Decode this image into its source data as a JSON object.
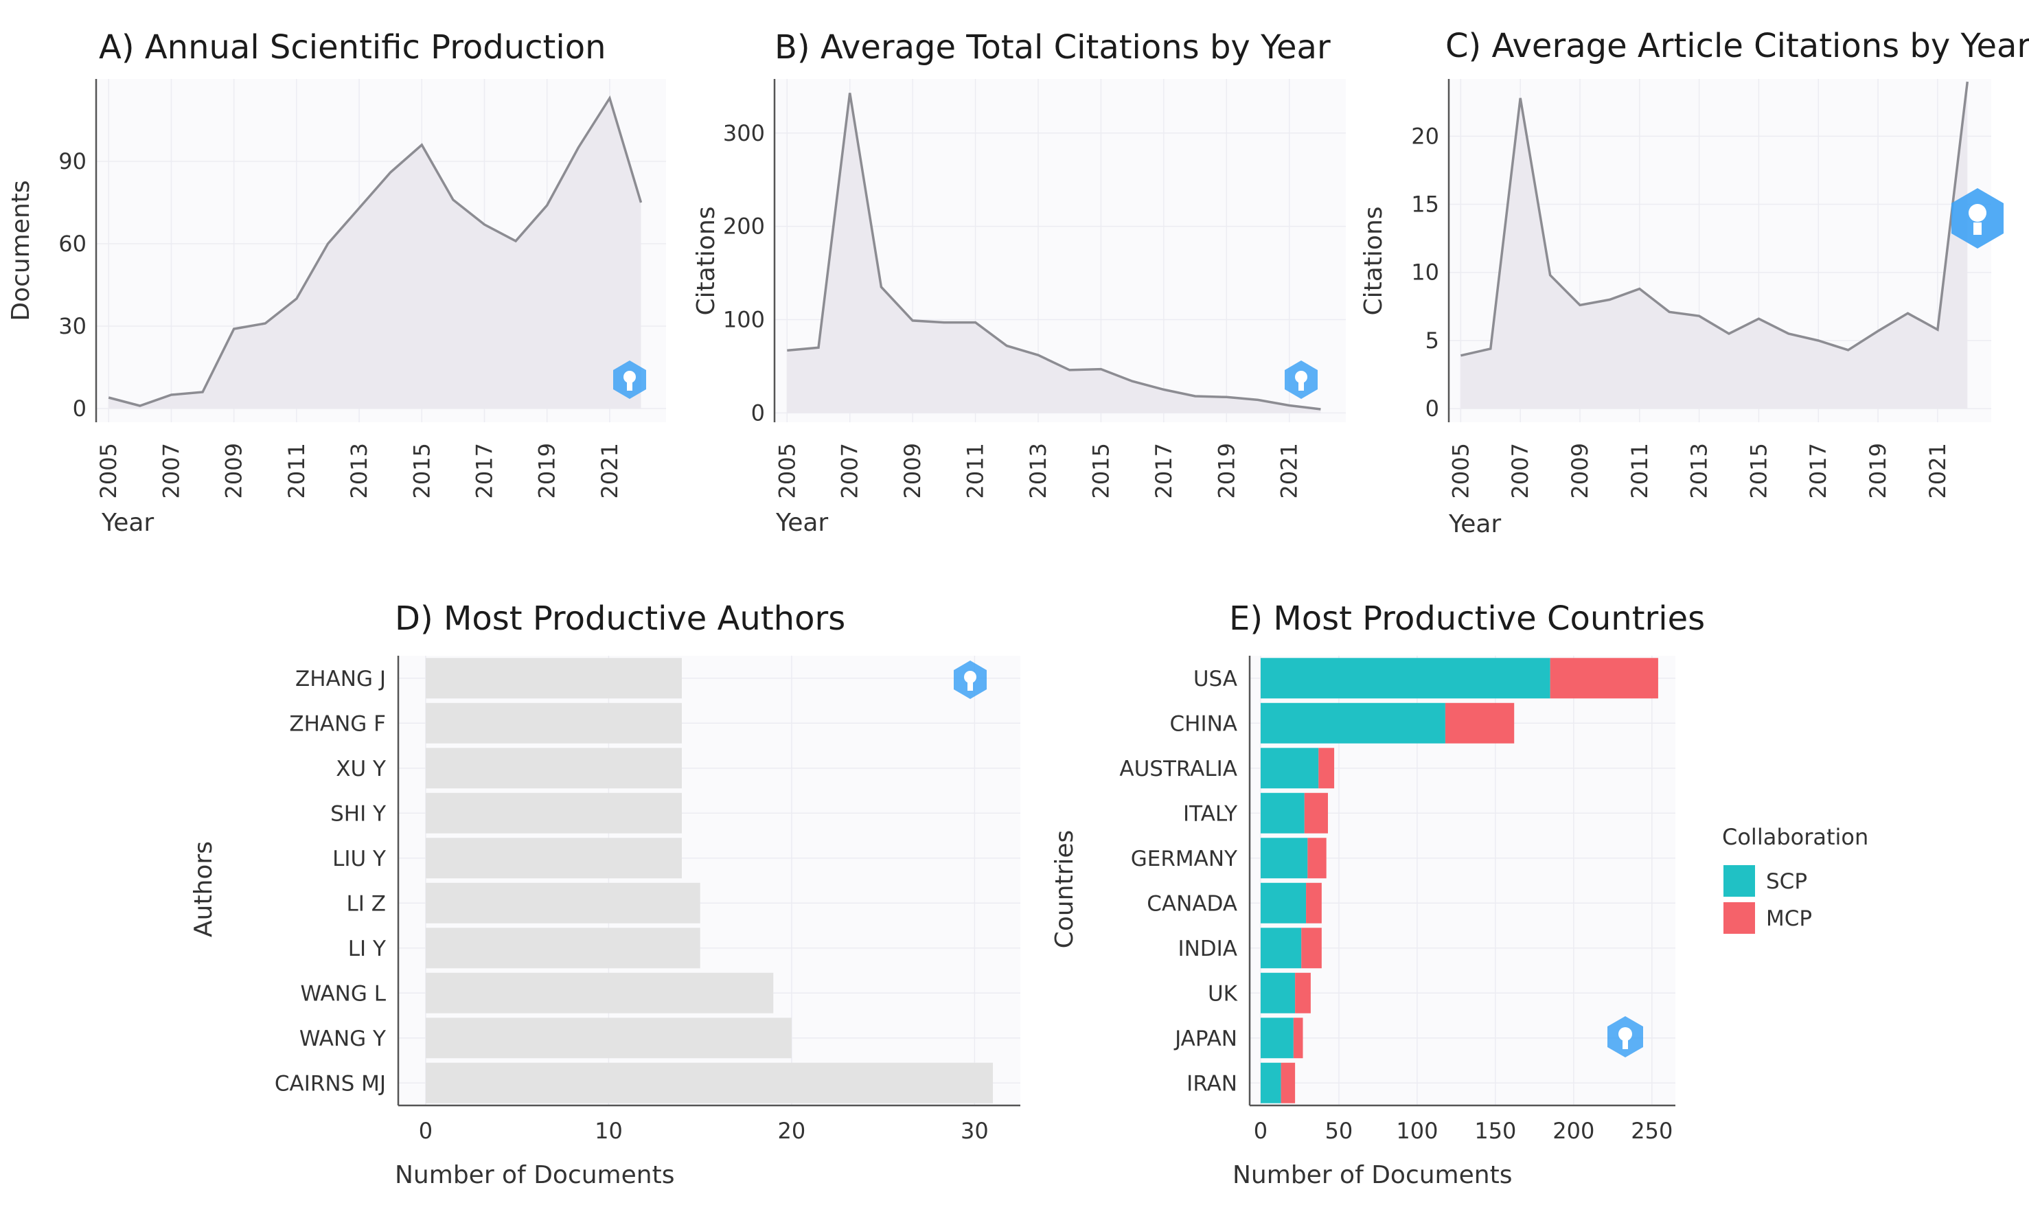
{
  "colors": {
    "scp": "#20c1c5",
    "mcp": "#f5626a",
    "bar": "#e3e3e3",
    "line": "#8c8c92",
    "area": "#ebe9ef"
  },
  "chart_data": [
    {
      "id": "a",
      "type": "area",
      "title": "A) Annual Scientific Production",
      "xlabel": "Year",
      "ylabel": "Documents",
      "x": [
        2005,
        2006,
        2007,
        2008,
        2009,
        2010,
        2011,
        2012,
        2013,
        2014,
        2015,
        2016,
        2017,
        2018,
        2019,
        2020,
        2021,
        2022
      ],
      "values": [
        4,
        1,
        5,
        6,
        29,
        31,
        40,
        60,
        73,
        86,
        96,
        76,
        67,
        61,
        74,
        95,
        113,
        75
      ],
      "xticks": [
        "2005",
        "2007",
        "2009",
        "2011",
        "2013",
        "2015",
        "2017",
        "2019",
        "2021"
      ],
      "yticks": [
        "0",
        "30",
        "60",
        "90"
      ],
      "xlim": [
        2004.6,
        2022.8
      ],
      "ylim": [
        -5,
        120
      ]
    },
    {
      "id": "b",
      "type": "area",
      "title": "B) Average Total Citations by Year",
      "xlabel": "Year",
      "ylabel": "Citations",
      "x": [
        2005,
        2006,
        2007,
        2008,
        2009,
        2010,
        2011,
        2012,
        2013,
        2014,
        2015,
        2016,
        2017,
        2018,
        2019,
        2020,
        2021,
        2022
      ],
      "values": [
        67,
        70,
        343,
        135,
        99,
        97,
        97,
        72,
        62,
        46,
        47,
        34,
        25,
        18,
        17,
        14,
        8,
        4
      ],
      "xticks": [
        "2005",
        "2007",
        "2009",
        "2011",
        "2013",
        "2015",
        "2017",
        "2019",
        "2021"
      ],
      "yticks": [
        "0",
        "100",
        "200",
        "300"
      ],
      "xlim": [
        2004.6,
        2022.8
      ],
      "ylim": [
        -10,
        358
      ]
    },
    {
      "id": "c",
      "type": "area",
      "title": "C) Average Article Citations by Year",
      "xlabel": "Year",
      "ylabel": "Citations",
      "x": [
        2005,
        2006,
        2007,
        2008,
        2009,
        2010,
        2011,
        2012,
        2013,
        2014,
        2015,
        2016,
        2017,
        2018,
        2019,
        2020,
        2021,
        2022
      ],
      "values": [
        3.9,
        4.4,
        22.8,
        9.8,
        7.6,
        8.0,
        8.8,
        7.1,
        6.8,
        5.5,
        6.6,
        5.5,
        5.0,
        4.3,
        5.7,
        7.0,
        5.8,
        24.0
      ],
      "xticks": [
        "2005",
        "2007",
        "2009",
        "2011",
        "2013",
        "2015",
        "2017",
        "2019",
        "2021"
      ],
      "yticks": [
        "0",
        "5",
        "10",
        "15",
        "20"
      ],
      "xlim": [
        2004.6,
        2022.8
      ],
      "ylim": [
        -1,
        24.2
      ]
    },
    {
      "id": "d",
      "type": "bar",
      "orientation": "horizontal",
      "title": "D) Most Productive Authors",
      "xlabel": "Number of Documents",
      "ylabel": "Authors",
      "categories": [
        "ZHANG J",
        "ZHANG F",
        "XU Y",
        "SHI Y",
        "LIU Y",
        "LI Z",
        "LI Y",
        "WANG L",
        "WANG Y",
        "CAIRNS MJ"
      ],
      "values": [
        14,
        14,
        14,
        14,
        14,
        15,
        15,
        19,
        20,
        31
      ],
      "xticks": [
        "0",
        "10",
        "20",
        "30"
      ],
      "xlim": [
        -1.5,
        32.5
      ]
    },
    {
      "id": "e",
      "type": "bar",
      "orientation": "horizontal",
      "stacked": true,
      "title": "E) Most Productive Countries",
      "xlabel": "Number of Documents",
      "ylabel": "Countries",
      "categories": [
        "USA",
        "CHINA",
        "AUSTRALIA",
        "ITALY",
        "GERMANY",
        "CANADA",
        "INDIA",
        "UK",
        "JAPAN",
        "IRAN"
      ],
      "series": [
        {
          "name": "SCP",
          "values": [
            185,
            118,
            37,
            28,
            30,
            29,
            26,
            22,
            21,
            13
          ]
        },
        {
          "name": "MCP",
          "values": [
            69,
            44,
            10,
            15,
            12,
            10,
            13,
            10,
            6,
            9
          ]
        }
      ],
      "legend_title": "Collaboration",
      "legend_position": "right",
      "xticks": [
        "0",
        "50",
        "100",
        "150",
        "200",
        "250"
      ],
      "xlim": [
        -7,
        265
      ]
    }
  ]
}
